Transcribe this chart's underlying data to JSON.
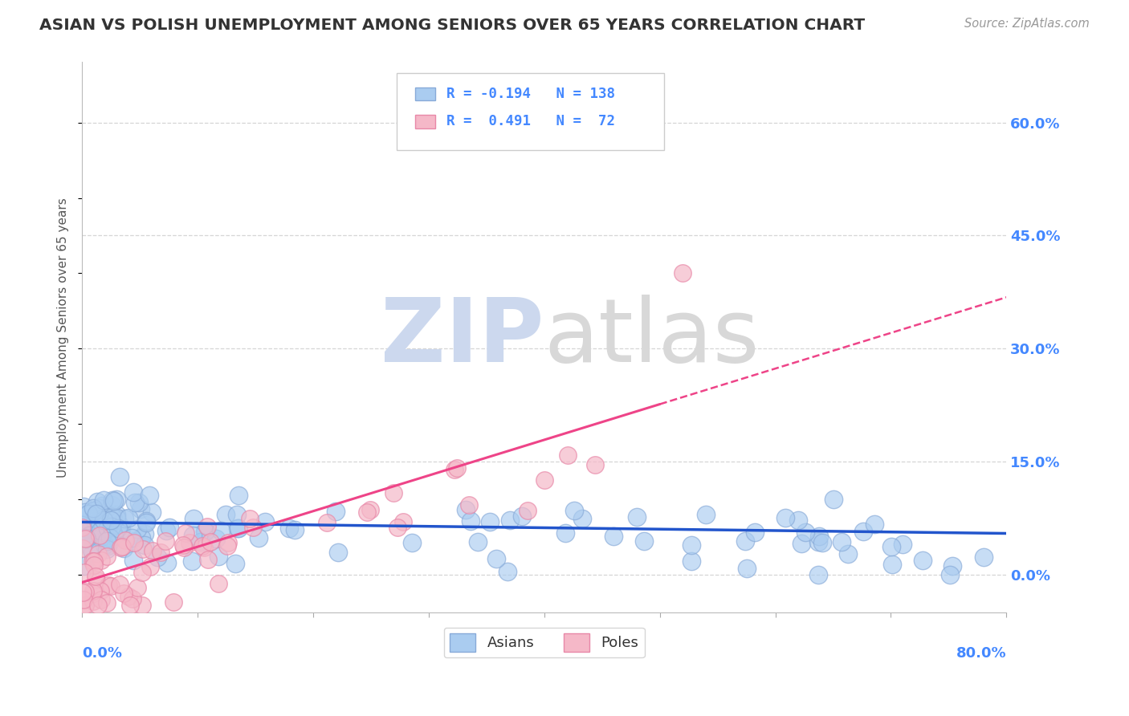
{
  "title": "ASIAN VS POLISH UNEMPLOYMENT AMONG SENIORS OVER 65 YEARS CORRELATION CHART",
  "source": "Source: ZipAtlas.com",
  "ylabel": "Unemployment Among Seniors over 65 years",
  "yticks_right": [
    0.0,
    0.15,
    0.3,
    0.45,
    0.6
  ],
  "ytick_labels_right": [
    "0.0%",
    "15.0%",
    "30.0%",
    "45.0%",
    "60.0%"
  ],
  "xmin": 0.0,
  "xmax": 0.8,
  "ymin": -0.05,
  "ymax": 0.68,
  "asian_R": -0.194,
  "asian_N": 138,
  "polish_R": 0.491,
  "polish_N": 72,
  "asian_color": "#aaccf0",
  "asian_edge_color": "#88aad8",
  "polish_color": "#f5b8c8",
  "polish_edge_color": "#e888a8",
  "asian_line_color": "#2255cc",
  "polish_line_color": "#ee4488",
  "background_color": "#ffffff",
  "grid_color": "#cccccc",
  "title_color": "#333333",
  "axis_label_color": "#4488ff",
  "watermark_zip_color": "#ccd8ee",
  "watermark_atlas_color": "#d8d8d8"
}
